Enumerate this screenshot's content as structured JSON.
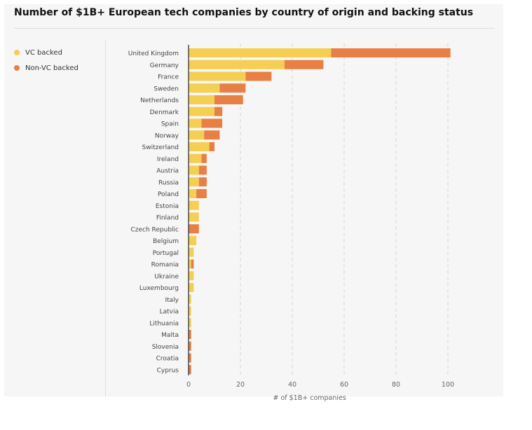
{
  "colors": {
    "vc": "#f5cf53",
    "nonvc": "#e87f44",
    "grid": "#d6d6d6",
    "axis": "#333333",
    "label": "#444444"
  },
  "chart_data": {
    "type": "bar",
    "orientation": "horizontal",
    "stacked": true,
    "title": "Number of $1B+ European tech companies by country of origin and backing status",
    "xlabel": "# of $1B+ companies",
    "xlim": [
      0,
      105
    ],
    "xticks": [
      0,
      20,
      40,
      60,
      80,
      100
    ],
    "grid": true,
    "legend": "top-left",
    "categories": [
      "United Kingdom",
      "Germany",
      "France",
      "Sweden",
      "Netherlands",
      "Denmark",
      "Spain",
      "Norway",
      "Switzerland",
      "Ireland",
      "Austria",
      "Russia",
      "Poland",
      "Estonia",
      "Finland",
      "Czech Republic",
      "Belgium",
      "Portugal",
      "Romania",
      "Ukraine",
      "Luxembourg",
      "Italy",
      "Latvia",
      "Lithuania",
      "Malta",
      "Slovenia",
      "Croatia",
      "Cyprus"
    ],
    "series": [
      {
        "name": "VC backed",
        "values": [
          55,
          37,
          22,
          12,
          10,
          10,
          5,
          6,
          8,
          5,
          4,
          4,
          3,
          4,
          4,
          0,
          3,
          2,
          1,
          2,
          2,
          1,
          1,
          1,
          0,
          0,
          0,
          0
        ]
      },
      {
        "name": "Non-VC backed",
        "values": [
          46,
          15,
          10,
          10,
          11,
          3,
          8,
          6,
          2,
          2,
          3,
          3,
          4,
          0,
          0,
          4,
          0,
          0,
          1,
          0,
          0,
          0,
          0,
          0,
          1,
          1,
          1,
          1
        ]
      }
    ]
  }
}
